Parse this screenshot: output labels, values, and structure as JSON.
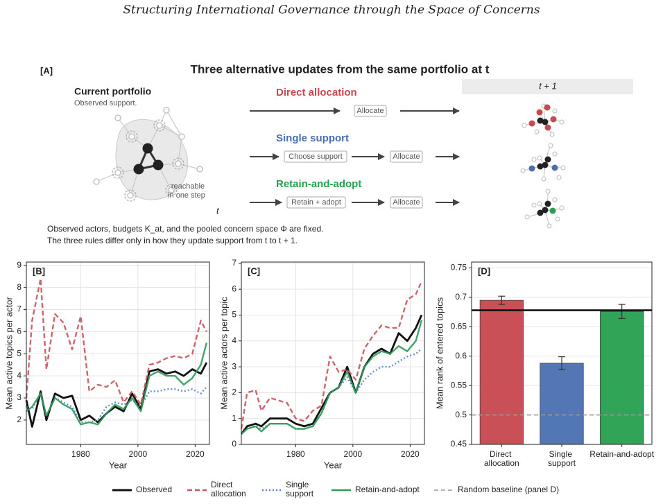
{
  "title": "Structuring International Governance through the Space of Concerns",
  "panel_a": {
    "label": "[A]",
    "title": "Three alternative updates from the same portfolio at t",
    "current_title": "Current portfolio",
    "current_subtitle": "Observed support.",
    "reachable": [
      "reachable",
      "in one step"
    ],
    "time_label": "t",
    "next_label": "t + 1",
    "rules": [
      {
        "name": "Direct allocation",
        "color": "#c9474f",
        "steps": [
          "Allocate"
        ]
      },
      {
        "name": "Single support",
        "color": "#4a6fb0",
        "steps": [
          "Choose support",
          "Allocate"
        ]
      },
      {
        "name": "Retain-and-adopt",
        "color": "#27a050",
        "steps": [
          "Retain + adopt",
          "Allocate"
        ]
      }
    ],
    "notes": [
      "Observed actors, budgets K_at, and the pooled concern space Φ are fixed.",
      "The three rules differ only in how they update support from t to t + 1."
    ]
  },
  "chart_data": [
    {
      "type": "line",
      "label": "[B]",
      "x_label": "Year",
      "y_label": "Mean active topics per actor",
      "x": [
        1961,
        1963,
        1966,
        1968,
        1971,
        1974,
        1977,
        1980,
        1983,
        1986,
        1989,
        1992,
        1995,
        1998,
        2001,
        2004,
        2007,
        2010,
        2013,
        2016,
        2019,
        2022,
        2024
      ],
      "xlim": [
        1961,
        2025
      ],
      "xticks": [
        1980,
        2000,
        2020
      ],
      "ylim": [
        0.9,
        9.15
      ],
      "yticks": [
        2,
        3,
        4,
        5,
        6,
        7,
        8,
        9
      ],
      "grid": true,
      "series": [
        {
          "name": "Observed",
          "color": "#111111",
          "dash": "solid",
          "values": [
            2.9,
            1.7,
            3.3,
            2.0,
            3.2,
            3.0,
            3.1,
            2.0,
            2.2,
            1.9,
            2.3,
            2.6,
            2.4,
            3.2,
            2.5,
            4.2,
            4.3,
            4.1,
            4.2,
            4.0,
            4.3,
            4.1,
            4.6
          ]
        },
        {
          "name": "Direct allocation",
          "color": "#c9525a",
          "dash": "dashed",
          "values": [
            3.0,
            6.5,
            8.4,
            4.3,
            6.8,
            6.4,
            5.2,
            6.7,
            3.3,
            3.6,
            3.5,
            3.8,
            2.8,
            3.3,
            2.7,
            4.5,
            4.6,
            4.8,
            4.9,
            4.8,
            5.0,
            6.5,
            6.0
          ]
        },
        {
          "name": "Single support",
          "color": "#5a7ec0",
          "dash": "dotted",
          "values": [
            2.6,
            2.5,
            3.2,
            2.2,
            3.0,
            2.8,
            2.6,
            1.9,
            1.9,
            2.0,
            2.6,
            2.8,
            2.7,
            2.9,
            2.6,
            3.3,
            3.3,
            3.4,
            3.4,
            3.3,
            3.4,
            3.2,
            3.5
          ]
        },
        {
          "name": "Retain-and-adopt",
          "color": "#2e9a58",
          "dash": "solid",
          "values": [
            2.4,
            2.6,
            3.2,
            2.2,
            3.0,
            2.7,
            2.5,
            1.8,
            1.9,
            1.8,
            2.3,
            2.7,
            2.5,
            3.0,
            2.4,
            4.0,
            4.2,
            4.0,
            4.0,
            3.6,
            3.9,
            4.5,
            5.5
          ]
        }
      ]
    },
    {
      "type": "line",
      "label": "[C]",
      "x_label": "Year",
      "y_label": "Mean active actors per topic",
      "x": [
        1961,
        1963,
        1966,
        1968,
        1971,
        1974,
        1977,
        1980,
        1983,
        1986,
        1989,
        1992,
        1995,
        1998,
        2001,
        2004,
        2007,
        2010,
        2013,
        2016,
        2019,
        2022,
        2024
      ],
      "xlim": [
        1961,
        2025
      ],
      "xticks": [
        1980,
        2000,
        2020
      ],
      "ylim": [
        0,
        7.05
      ],
      "yticks": [
        0,
        1,
        2,
        3,
        4,
        5,
        6,
        7
      ],
      "grid": true,
      "series": [
        {
          "name": "Observed",
          "color": "#111111",
          "dash": "solid",
          "values": [
            0.4,
            0.7,
            0.8,
            0.7,
            1.0,
            1.0,
            1.0,
            0.8,
            0.7,
            0.8,
            1.4,
            2.0,
            2.2,
            3.0,
            2.0,
            3.0,
            3.5,
            3.7,
            3.5,
            4.3,
            4.0,
            4.5,
            5.0
          ]
        },
        {
          "name": "Direct allocation",
          "color": "#c9525a",
          "dash": "dashed",
          "values": [
            0.6,
            2.0,
            2.1,
            1.3,
            1.8,
            1.7,
            1.6,
            1.0,
            0.9,
            1.3,
            1.5,
            3.4,
            2.8,
            2.9,
            2.5,
            3.7,
            4.2,
            4.6,
            4.5,
            4.5,
            5.6,
            5.8,
            6.3
          ]
        },
        {
          "name": "Single support",
          "color": "#5a7ec0",
          "dash": "dotted",
          "values": [
            0.4,
            0.6,
            0.7,
            0.6,
            0.8,
            0.8,
            0.8,
            0.6,
            0.6,
            0.7,
            1.2,
            2.0,
            2.2,
            2.6,
            2.0,
            2.5,
            2.8,
            3.0,
            3.0,
            3.2,
            3.4,
            3.5,
            3.7
          ]
        },
        {
          "name": "Retain-and-adopt",
          "color": "#2e9a58",
          "dash": "solid",
          "values": [
            0.4,
            0.6,
            0.7,
            0.5,
            0.8,
            0.8,
            0.8,
            0.6,
            0.6,
            0.7,
            1.2,
            2.0,
            2.2,
            2.8,
            2.0,
            3.0,
            3.4,
            3.6,
            3.5,
            3.8,
            3.6,
            4.0,
            4.8
          ]
        }
      ]
    },
    {
      "type": "bar",
      "label": "[D]",
      "y_label": "Mean rank of entered topics",
      "categories": [
        "Direct allocation",
        "Single support",
        "Retain-and-adopt"
      ],
      "values": [
        0.695,
        0.588,
        0.676
      ],
      "errors": [
        0.007,
        0.011,
        0.012
      ],
      "colors": [
        "#c8474f",
        "#4a6fb0",
        "#27a050"
      ],
      "ylim": [
        0.45,
        0.76
      ],
      "yticks": [
        0.45,
        0.5,
        0.55,
        0.6,
        0.65,
        0.7,
        0.75
      ],
      "grid": true,
      "reference_line": {
        "name": "Observed",
        "value": 0.678,
        "color": "#111111"
      },
      "baseline": {
        "name": "Random baseline (panel D)",
        "value": 0.5,
        "color": "#999999"
      }
    }
  ]
}
